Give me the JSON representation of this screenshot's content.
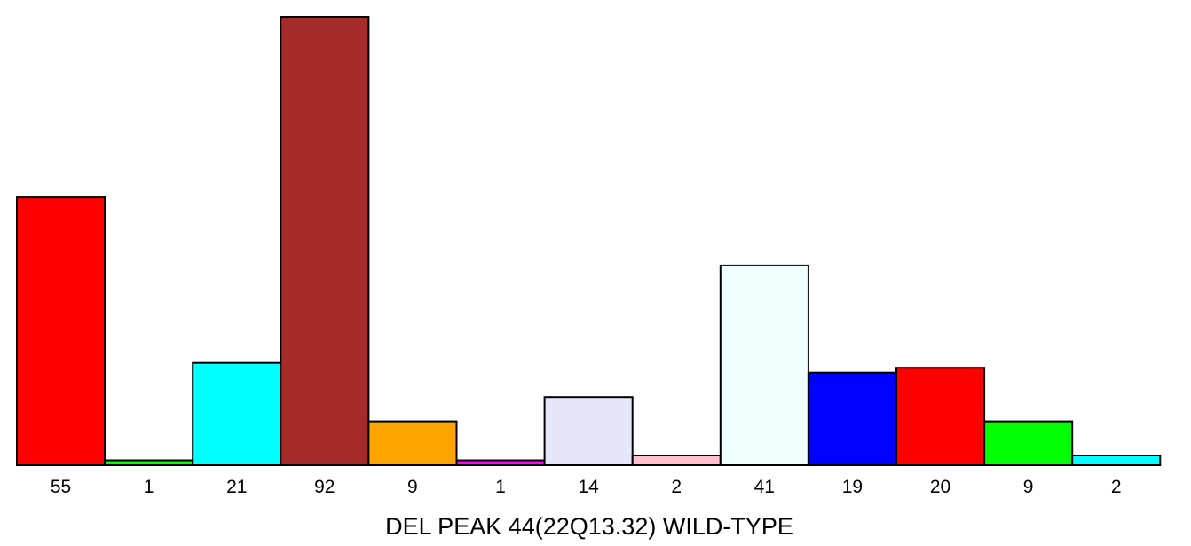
{
  "chart_data": {
    "type": "bar",
    "title": "",
    "xlabel": "DEL PEAK 44(22Q13.32) WILD-TYPE",
    "ylabel": "",
    "categories": [
      "55",
      "1",
      "21",
      "92",
      "9",
      "1",
      "14",
      "2",
      "41",
      "19",
      "20",
      "9",
      "2"
    ],
    "values": [
      55,
      1,
      21,
      92,
      9,
      1,
      14,
      2,
      41,
      19,
      20,
      9,
      2
    ],
    "colors": [
      "#ff0000",
      "#00ff00",
      "#00ffff",
      "#a52a2a",
      "#ffa500",
      "#ff00ff",
      "#e6e6fa",
      "#ffc0cb",
      "#f0ffff",
      "#0000ff",
      "#ff0000",
      "#00ff00",
      "#00ffff"
    ],
    "ylim": [
      0,
      92
    ],
    "grid": false,
    "legend": "none"
  }
}
